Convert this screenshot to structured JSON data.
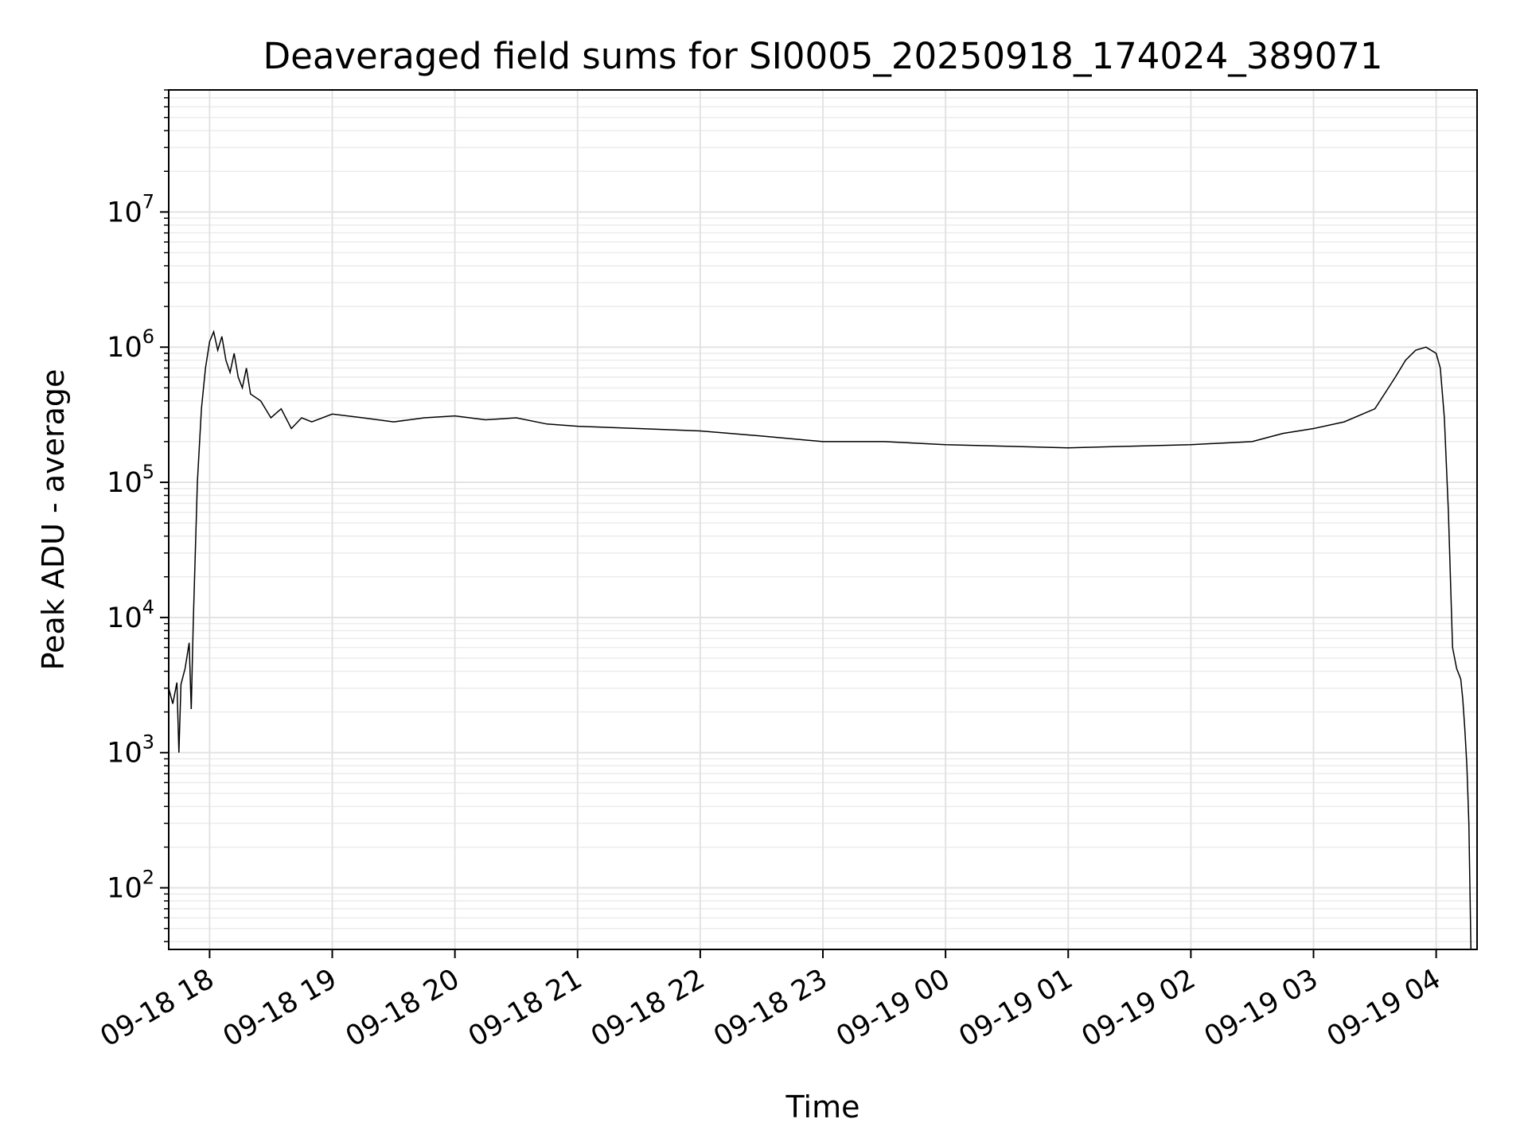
{
  "chart_data": {
    "type": "line",
    "title": "Deaveraged field sums for SI0005_20250918_174024_389071",
    "xlabel": "Time",
    "ylabel": "Peak ADU - average",
    "yscale": "log",
    "xlim": [
      "09-18 17:40",
      "09-19 04:20"
    ],
    "ylim": [
      35,
      80000000
    ],
    "grid": true,
    "x_ticks": [
      "09-18 18",
      "09-18 19",
      "09-18 20",
      "09-18 21",
      "09-18 22",
      "09-18 23",
      "09-19 00",
      "09-19 01",
      "09-19 02",
      "09-19 03",
      "09-19 04"
    ],
    "y_ticks": [
      {
        "base": "10",
        "exp": "2",
        "value": 100
      },
      {
        "base": "10",
        "exp": "3",
        "value": 1000
      },
      {
        "base": "10",
        "exp": "4",
        "value": 10000
      },
      {
        "base": "10",
        "exp": "5",
        "value": 100000
      },
      {
        "base": "10",
        "exp": "6",
        "value": 1000000
      },
      {
        "base": "10",
        "exp": "7",
        "value": 10000000
      }
    ],
    "series": [
      {
        "color": "#000000",
        "points": [
          [
            "09-18 17:40",
            3000
          ],
          [
            "09-18 17:42",
            2300
          ],
          [
            "09-18 17:44",
            3300
          ],
          [
            "09-18 17:45",
            1000
          ],
          [
            "09-18 17:46",
            3200
          ],
          [
            "09-18 17:48",
            4200
          ],
          [
            "09-18 17:50",
            6500
          ],
          [
            "09-18 17:51",
            2100
          ],
          [
            "09-18 17:52",
            9000
          ],
          [
            "09-18 17:53",
            30000
          ],
          [
            "09-18 17:54",
            100000
          ],
          [
            "09-18 17:56",
            350000
          ],
          [
            "09-18 17:58",
            700000
          ],
          [
            "09-18 18:00",
            1100000
          ],
          [
            "09-18 18:02",
            1300000
          ],
          [
            "09-18 18:04",
            950000
          ],
          [
            "09-18 18:06",
            1200000
          ],
          [
            "09-18 18:08",
            800000
          ],
          [
            "09-18 18:10",
            650000
          ],
          [
            "09-18 18:12",
            900000
          ],
          [
            "09-18 18:14",
            600000
          ],
          [
            "09-18 18:16",
            500000
          ],
          [
            "09-18 18:18",
            700000
          ],
          [
            "09-18 18:20",
            450000
          ],
          [
            "09-18 18:25",
            400000
          ],
          [
            "09-18 18:30",
            300000
          ],
          [
            "09-18 18:35",
            350000
          ],
          [
            "09-18 18:40",
            250000
          ],
          [
            "09-18 18:45",
            300000
          ],
          [
            "09-18 18:50",
            280000
          ],
          [
            "09-18 19:00",
            320000
          ],
          [
            "09-18 19:15",
            300000
          ],
          [
            "09-18 19:30",
            280000
          ],
          [
            "09-18 19:45",
            300000
          ],
          [
            "09-18 20:00",
            310000
          ],
          [
            "09-18 20:15",
            290000
          ],
          [
            "09-18 20:30",
            300000
          ],
          [
            "09-18 20:45",
            270000
          ],
          [
            "09-18 21:00",
            260000
          ],
          [
            "09-18 21:30",
            250000
          ],
          [
            "09-18 22:00",
            240000
          ],
          [
            "09-18 22:30",
            220000
          ],
          [
            "09-18 23:00",
            200000
          ],
          [
            "09-18 23:30",
            200000
          ],
          [
            "09-19 00:00",
            190000
          ],
          [
            "09-19 00:30",
            185000
          ],
          [
            "09-19 01:00",
            180000
          ],
          [
            "09-19 01:30",
            185000
          ],
          [
            "09-19 02:00",
            190000
          ],
          [
            "09-19 02:30",
            200000
          ],
          [
            "09-19 02:45",
            230000
          ],
          [
            "09-19 03:00",
            250000
          ],
          [
            "09-19 03:15",
            280000
          ],
          [
            "09-19 03:30",
            350000
          ],
          [
            "09-19 03:40",
            600000
          ],
          [
            "09-19 03:45",
            800000
          ],
          [
            "09-19 03:50",
            950000
          ],
          [
            "09-19 03:55",
            1000000
          ],
          [
            "09-19 04:00",
            900000
          ],
          [
            "09-19 04:02",
            700000
          ],
          [
            "09-19 04:04",
            300000
          ],
          [
            "09-19 04:06",
            60000
          ],
          [
            "09-19 04:08",
            6000
          ],
          [
            "09-19 04:10",
            4200
          ],
          [
            "09-19 04:12",
            3500
          ],
          [
            "09-19 04:13",
            2500
          ],
          [
            "09-19 04:14",
            1500
          ],
          [
            "09-19 04:15",
            800
          ],
          [
            "09-19 04:16",
            300
          ],
          [
            "09-19 04:17",
            35
          ]
        ]
      }
    ]
  }
}
